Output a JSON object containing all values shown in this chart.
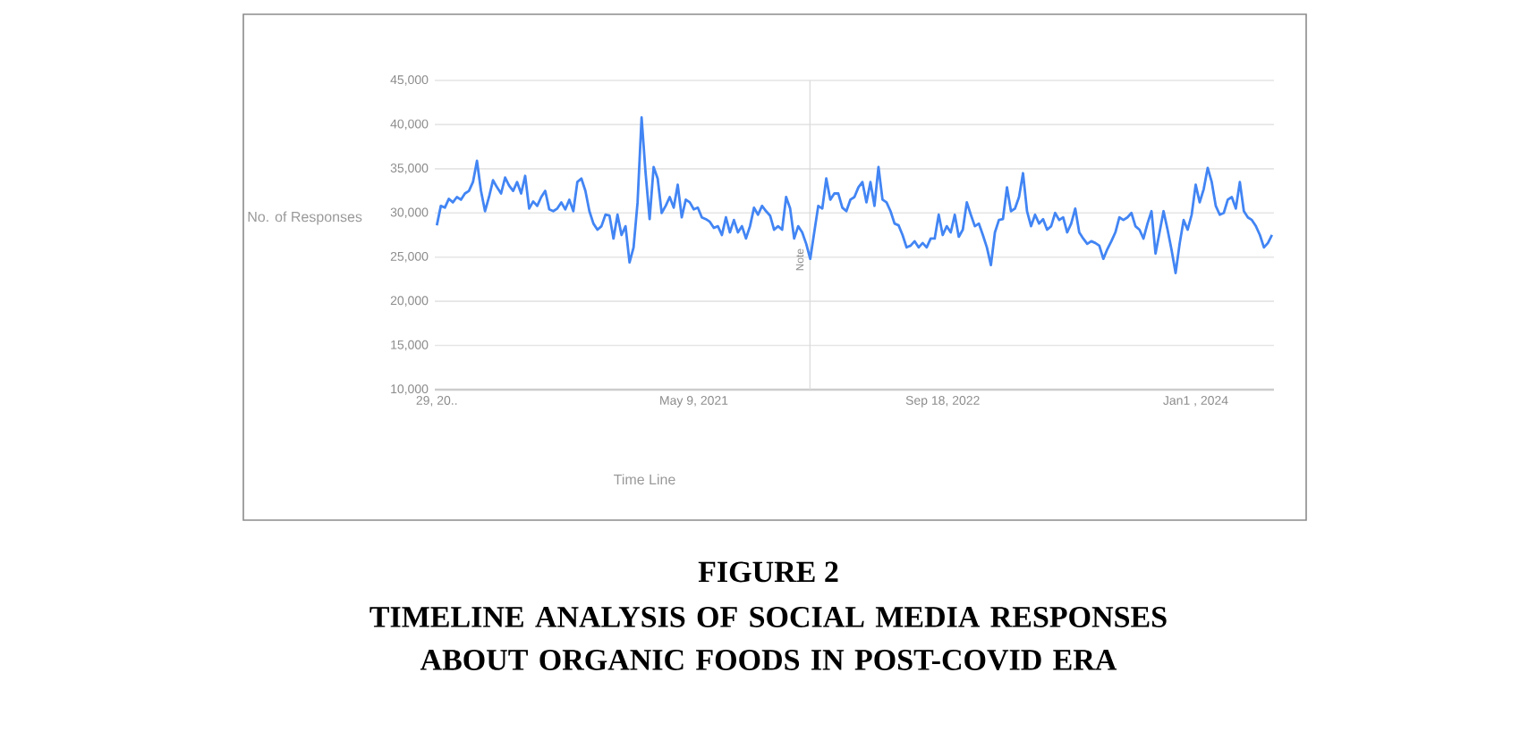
{
  "chart_data": {
    "type": "line",
    "title": "FIGURE 2",
    "subtitle": "TIMELINE ANALYSIS OF SOCIAL MEDIA RESPONSES ABOUT ORGANIC FOODS IN POST-COVID ERA",
    "xlabel": "Time Line",
    "ylabel": "No. of Responses",
    "series": [
      {
        "color": "#4285f4",
        "values": [
          28600,
          30800,
          30600,
          31600,
          31200,
          31800,
          31500,
          32200,
          32500,
          33500,
          35900,
          32500,
          30200,
          31800,
          33700,
          32900,
          32200,
          34000,
          33100,
          32500,
          33500,
          32200,
          34200,
          30500,
          31300,
          30800,
          31800,
          32500,
          30400,
          30200,
          30500,
          31200,
          30400,
          31500,
          30200,
          33500,
          33900,
          32500,
          30200,
          28800,
          28100,
          28500,
          29800,
          29700,
          27100,
          29800,
          27500,
          28500,
          24400,
          26100,
          31200,
          40800,
          34500,
          29300,
          35200,
          33900,
          30000,
          30800,
          31800,
          30600,
          33200,
          29500,
          31500,
          31200,
          30400,
          30600,
          29500,
          29300,
          29000,
          28300,
          28500,
          27500,
          29500,
          27800,
          29200,
          27800,
          28500,
          27100,
          28500,
          30600,
          29800,
          30800,
          30200,
          29700,
          28100,
          28500,
          28100,
          31800,
          30500,
          27100,
          28500,
          27800,
          26500,
          24800,
          27800,
          30800,
          30500,
          33900,
          31500,
          32200,
          32200,
          30600,
          30200,
          31500,
          31800,
          32900,
          33500,
          31200,
          33500,
          30800,
          35200,
          31500,
          31200,
          30200,
          28800,
          28600,
          27500,
          26100,
          26300,
          26800,
          26100,
          26600,
          26100,
          27100,
          27100,
          29800,
          27500,
          28500,
          27800,
          29800,
          27300,
          28100,
          31200,
          29800,
          28500,
          28800,
          27500,
          26100,
          24100,
          27800,
          29200,
          29300,
          32900,
          30200,
          30500,
          31800,
          34500,
          30200,
          28500,
          29800,
          28800,
          29300,
          28100,
          28500,
          30000,
          29200,
          29500,
          27800,
          28800,
          30500,
          27800,
          27100,
          26500,
          26800,
          26600,
          26300,
          24800,
          25900,
          26800,
          27800,
          29500,
          29200,
          29500,
          30000,
          28500,
          28100,
          27100,
          28800,
          30200,
          25400,
          27800,
          30200,
          28100,
          25800,
          23200,
          26500,
          29200,
          28100,
          29800,
          33200,
          31200,
          32700,
          35100,
          33500,
          30800,
          29800,
          30000,
          31500,
          31800,
          30500,
          33500,
          30200,
          29500,
          29200,
          28500,
          27500,
          26100,
          26600,
          27500
        ]
      }
    ],
    "categories": [
      "29, 20..",
      null,
      null,
      null,
      null,
      null,
      null,
      null,
      null,
      null,
      null,
      null,
      null,
      null,
      null,
      null,
      null,
      null,
      null,
      null,
      null,
      null,
      null,
      null,
      null,
      null,
      null,
      null,
      null,
      null,
      null,
      null,
      null,
      null,
      null,
      null,
      null,
      null,
      null,
      null,
      null,
      null,
      null,
      null,
      null,
      null,
      null,
      null,
      null,
      null,
      null,
      null,
      null,
      null,
      null,
      null,
      null,
      null,
      null,
      null,
      null,
      null,
      null,
      null,
      "May 9, 2021",
      null,
      null,
      null,
      null,
      null,
      null,
      null,
      null,
      null,
      null,
      null,
      null,
      null,
      null,
      null,
      null,
      null,
      null,
      null,
      null,
      null,
      null,
      null,
      null,
      null,
      null,
      null,
      null,
      null,
      null,
      null,
      null,
      null,
      null,
      null,
      null,
      null,
      null,
      null,
      null,
      null,
      null,
      null,
      null,
      null,
      null,
      null,
      null,
      null,
      null,
      null,
      null,
      null,
      null,
      null,
      null,
      null,
      null,
      null,
      null,
      null,
      "Sep 18, 2022",
      null,
      null,
      null,
      null,
      null,
      null,
      null,
      null,
      null,
      null,
      null,
      null,
      null,
      null,
      null,
      null,
      null,
      null,
      null,
      null,
      null,
      null,
      null,
      null,
      null,
      null,
      null,
      null,
      null,
      null,
      null,
      null,
      null,
      null,
      null,
      null,
      null,
      null,
      null,
      null,
      null,
      null,
      null,
      null,
      null,
      null,
      null,
      null,
      null,
      null,
      null,
      null,
      null,
      null,
      null,
      null,
      null,
      null,
      null,
      null,
      null,
      null,
      "Jan1 , 2024",
      null,
      null,
      null,
      null,
      null,
      null,
      null,
      null,
      null,
      null,
      null,
      null,
      null,
      null,
      null,
      null,
      null,
      null,
      null
    ],
    "ylim": [
      10000,
      45000
    ],
    "yticks": [
      {
        "value": 10000,
        "label": "10,000"
      },
      {
        "value": 15000,
        "label": "15,000"
      },
      {
        "value": 20000,
        "label": "20,000"
      },
      {
        "value": 25000,
        "label": "25,000"
      },
      {
        "value": 30000,
        "label": "30,000"
      },
      {
        "value": 35000,
        "label": "35,000"
      },
      {
        "value": 40000,
        "label": "40,000"
      },
      {
        "value": 45000,
        "label": "45,000"
      }
    ],
    "annotations": [
      "Note"
    ],
    "grid": "y"
  }
}
